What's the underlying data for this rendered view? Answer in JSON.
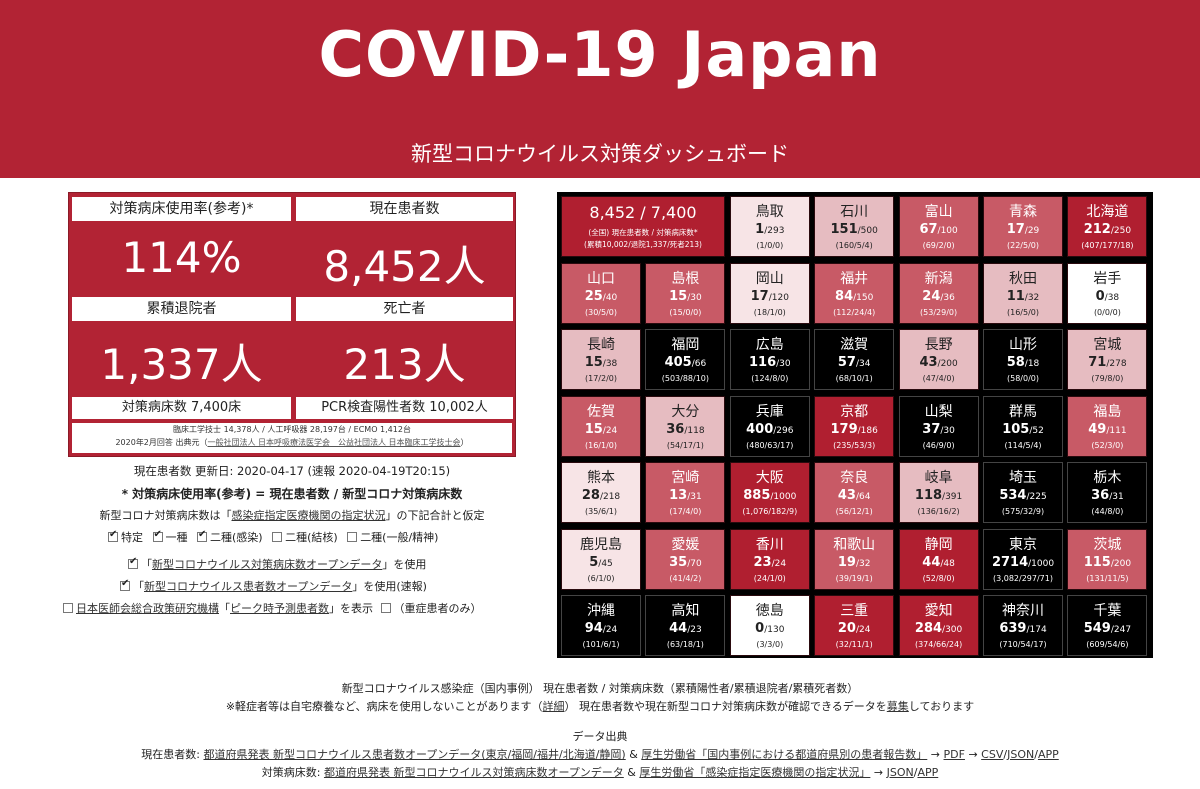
{
  "header": {
    "title": "COVID-19 Japan",
    "subtitle": "新型コロナウイルス対策ダッシュボード"
  },
  "stats": {
    "bed_usage_label": "対策病床使用率(参考)*",
    "bed_usage_value": "114%",
    "current_label": "現在患者数",
    "current_value": "8,452人",
    "discharged_label": "累積退院者",
    "discharged_value": "1,337人",
    "deaths_label": "死亡者",
    "deaths_value": "213人",
    "beds_foot": "対策病床数 7,400床",
    "pcr_foot": "PCR検査陽性者数 10,002人",
    "notes_line1": "臨床工学技士 14,378人 / 人工呼吸器 28,197台 / ECMO 1,412台",
    "notes_line2_prefix": "2020年2月回答 出典元（",
    "notes_line2_link": "一般社団法人 日本呼吸療法医学会　公益社団法人 日本臨床工学技士会",
    "notes_line2_suffix": "）"
  },
  "info": {
    "updated": "現在患者数 更新日: 2020-04-17 (速報 2020-04-19T20:15)",
    "formula": "* 対策病床使用率(参考) = 現在患者数 / 新型コロナ対策病床数",
    "assume_prefix": "新型コロナ対策病床数は「",
    "assume_link": "感染症指定医療機関の指定状況",
    "assume_suffix": "」の下記合計と仮定",
    "checks": [
      {
        "label": "特定",
        "checked": true
      },
      {
        "label": "一種",
        "checked": true
      },
      {
        "label": "二種(感染)",
        "checked": true
      },
      {
        "label": "二種(結核)",
        "checked": false
      },
      {
        "label": "二種(一般/精神)",
        "checked": false
      }
    ],
    "opt1_prefix": "「",
    "opt1_link": "新型コロナウイルス対策病床数オープンデータ",
    "opt1_suffix": "」を使用",
    "opt2_prefix": "「",
    "opt2_link": "新型コロナウイルス患者数オープンデータ",
    "opt2_suffix": "」を使用(速報)",
    "opt3_link1": "日本医師会総合政策研究機構",
    "opt3_mid": "「",
    "opt3_link2": "ピーク時予測患者数",
    "opt3_suffix": "」を表示",
    "opt3_extra": "（重症患者のみ）"
  },
  "summary_tile": {
    "title": "8,452 / 7,400",
    "line2": "(全国) 現在患者数 / 対策病床数*",
    "line3": "(累積10,002/退院1,337/死者213)"
  },
  "prefectures": [
    {
      "name": "鳥取",
      "current": "1",
      "beds": "/293",
      "detail": "(1/0/0)",
      "color": "pale"
    },
    {
      "name": "石川",
      "current": "151",
      "beds": "/500",
      "detail": "(160/5/4)",
      "color": "light"
    },
    {
      "name": "富山",
      "current": "67",
      "beds": "/100",
      "detail": "(69/2/0)",
      "color": "mid"
    },
    {
      "name": "青森",
      "current": "17",
      "beds": "/29",
      "detail": "(22/5/0)",
      "color": "mid"
    },
    {
      "name": "北海道",
      "current": "212",
      "beds": "/250",
      "detail": "(407/177/18)",
      "color": "dark"
    },
    {
      "name": "山口",
      "current": "25",
      "beds": "/40",
      "detail": "(30/5/0)",
      "color": "mid"
    },
    {
      "name": "島根",
      "current": "15",
      "beds": "/30",
      "detail": "(15/0/0)",
      "color": "mid"
    },
    {
      "name": "岡山",
      "current": "17",
      "beds": "/120",
      "detail": "(18/1/0)",
      "color": "pale"
    },
    {
      "name": "福井",
      "current": "84",
      "beds": "/150",
      "detail": "(112/24/4)",
      "color": "mid"
    },
    {
      "name": "新潟",
      "current": "24",
      "beds": "/36",
      "detail": "(53/29/0)",
      "color": "mid"
    },
    {
      "name": "秋田",
      "current": "11",
      "beds": "/32",
      "detail": "(16/5/0)",
      "color": "light"
    },
    {
      "name": "岩手",
      "current": "0",
      "beds": "/38",
      "detail": "(0/0/0)",
      "color": "white"
    },
    {
      "name": "長崎",
      "current": "15",
      "beds": "/38",
      "detail": "(17/2/0)",
      "color": "light"
    },
    {
      "name": "福岡",
      "current": "405",
      "beds": "/66",
      "detail": "(503/88/10)",
      "color": "black"
    },
    {
      "name": "広島",
      "current": "116",
      "beds": "/30",
      "detail": "(124/8/0)",
      "color": "black"
    },
    {
      "name": "滋賀",
      "current": "57",
      "beds": "/34",
      "detail": "(68/10/1)",
      "color": "black"
    },
    {
      "name": "長野",
      "current": "43",
      "beds": "/200",
      "detail": "(47/4/0)",
      "color": "light"
    },
    {
      "name": "山形",
      "current": "58",
      "beds": "/18",
      "detail": "(58/0/0)",
      "color": "black"
    },
    {
      "name": "宮城",
      "current": "71",
      "beds": "/278",
      "detail": "(79/8/0)",
      "color": "light"
    },
    {
      "name": "佐賀",
      "current": "15",
      "beds": "/24",
      "detail": "(16/1/0)",
      "color": "mid"
    },
    {
      "name": "大分",
      "current": "36",
      "beds": "/118",
      "detail": "(54/17/1)",
      "color": "light"
    },
    {
      "name": "兵庫",
      "current": "400",
      "beds": "/296",
      "detail": "(480/63/17)",
      "color": "black"
    },
    {
      "name": "京都",
      "current": "179",
      "beds": "/186",
      "detail": "(235/53/3)",
      "color": "dark"
    },
    {
      "name": "山梨",
      "current": "37",
      "beds": "/30",
      "detail": "(46/9/0)",
      "color": "black"
    },
    {
      "name": "群馬",
      "current": "105",
      "beds": "/52",
      "detail": "(114/5/4)",
      "color": "black"
    },
    {
      "name": "福島",
      "current": "49",
      "beds": "/111",
      "detail": "(52/3/0)",
      "color": "mid"
    },
    {
      "name": "熊本",
      "current": "28",
      "beds": "/218",
      "detail": "(35/6/1)",
      "color": "pale"
    },
    {
      "name": "宮崎",
      "current": "13",
      "beds": "/31",
      "detail": "(17/4/0)",
      "color": "mid"
    },
    {
      "name": "大阪",
      "current": "885",
      "beds": "/1000",
      "detail": "(1,076/182/9)",
      "color": "dark"
    },
    {
      "name": "奈良",
      "current": "43",
      "beds": "/64",
      "detail": "(56/12/1)",
      "color": "mid"
    },
    {
      "name": "岐阜",
      "current": "118",
      "beds": "/391",
      "detail": "(136/16/2)",
      "color": "light"
    },
    {
      "name": "埼玉",
      "current": "534",
      "beds": "/225",
      "detail": "(575/32/9)",
      "color": "black"
    },
    {
      "name": "栃木",
      "current": "36",
      "beds": "/31",
      "detail": "(44/8/0)",
      "color": "black"
    },
    {
      "name": "鹿児島",
      "current": "5",
      "beds": "/45",
      "detail": "(6/1/0)",
      "color": "pale"
    },
    {
      "name": "愛媛",
      "current": "35",
      "beds": "/70",
      "detail": "(41/4/2)",
      "color": "mid"
    },
    {
      "name": "香川",
      "current": "23",
      "beds": "/24",
      "detail": "(24/1/0)",
      "color": "dark"
    },
    {
      "name": "和歌山",
      "current": "19",
      "beds": "/32",
      "detail": "(39/19/1)",
      "color": "mid"
    },
    {
      "name": "静岡",
      "current": "44",
      "beds": "/48",
      "detail": "(52/8/0)",
      "color": "dark"
    },
    {
      "name": "東京",
      "current": "2714",
      "beds": "/1000",
      "detail": "(3,082/297/71)",
      "color": "black"
    },
    {
      "name": "茨城",
      "current": "115",
      "beds": "/200",
      "detail": "(131/11/5)",
      "color": "mid"
    },
    {
      "name": "沖縄",
      "current": "94",
      "beds": "/24",
      "detail": "(101/6/1)",
      "color": "black"
    },
    {
      "name": "高知",
      "current": "44",
      "beds": "/23",
      "detail": "(63/18/1)",
      "color": "black"
    },
    {
      "name": "徳島",
      "current": "0",
      "beds": "/130",
      "detail": "(3/3/0)",
      "color": "white"
    },
    {
      "name": "三重",
      "current": "20",
      "beds": "/24",
      "detail": "(32/11/1)",
      "color": "dark"
    },
    {
      "name": "愛知",
      "current": "284",
      "beds": "/300",
      "detail": "(374/66/24)",
      "color": "dark"
    },
    {
      "name": "神奈川",
      "current": "639",
      "beds": "/174",
      "detail": "(710/54/17)",
      "color": "black"
    },
    {
      "name": "千葉",
      "current": "549",
      "beds": "/247",
      "detail": "(609/54/6)",
      "color": "black"
    }
  ],
  "footer": {
    "legend": "新型コロナウイルス感染症（国内事例） 現在患者数 / 対策病床数（累積陽性者/累積退院者/累積死者数）",
    "note_prefix": "※軽症者等は自宅療養など、病床を使用しないことがあります（",
    "note_link1": "詳細",
    "note_mid": "） 現在患者数や現在新型コロナ対策病床数が確認できるデータを",
    "note_link2": "募集",
    "note_suffix": "しております",
    "source_title": "データ出典",
    "src1_prefix": "現在患者数: ",
    "src1_link1": "都道府県発表 新型コロナウイルス患者数オープンデータ(東京/福岡/福井/北海道/静岡)",
    "src1_mid": " & ",
    "src1_link2": "厚生労働省「国内事例における都道府県別の患者報告数」",
    "src1_arrow": " → ",
    "src1_link3": "PDF",
    "src1_arrow2": " → ",
    "src1_link4": "CSV",
    "src1_sep1": "/",
    "src1_link5": "JSON",
    "src1_sep2": "/",
    "src1_link6": "APP",
    "src2_prefix": "対策病床数: ",
    "src2_link1": "都道府県発表 新型コロナウイルス対策病床数オープンデータ",
    "src2_mid": " & ",
    "src2_link2": "厚生労働省「感染症指定医療機関の指定状況」",
    "src2_arrow": " → ",
    "src2_link3": "JSON",
    "src2_sep": "/",
    "src2_link4": "APP"
  }
}
